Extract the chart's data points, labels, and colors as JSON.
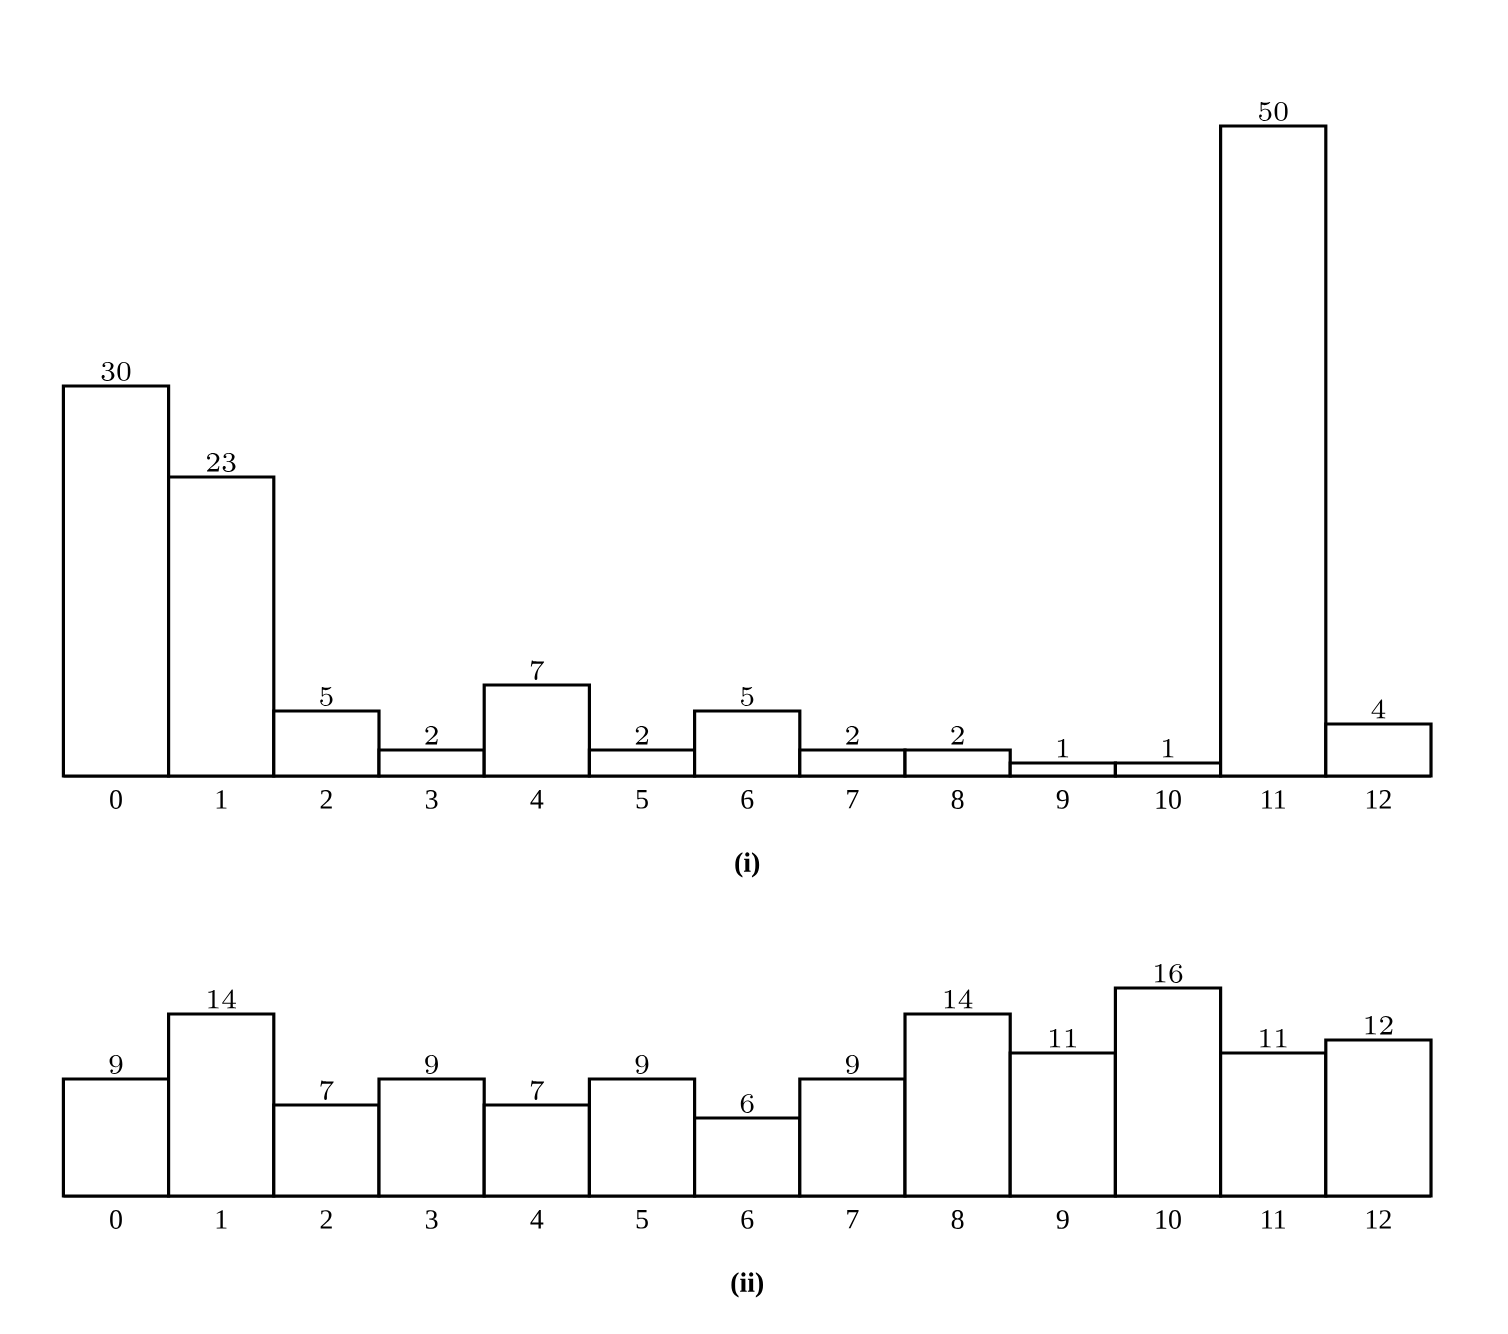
{
  "chart_data": [
    {
      "type": "bar",
      "categories": [
        "0",
        "1",
        "2",
        "3",
        "4",
        "5",
        "6",
        "7",
        "8",
        "9",
        "10",
        "11",
        "12"
      ],
      "values": [
        30,
        23,
        5,
        2,
        7,
        2,
        5,
        2,
        2,
        1,
        1,
        50,
        4
      ],
      "color": "#ffffff",
      "xlabel": "(i)",
      "data_labels": true
    },
    {
      "type": "bar",
      "categories": [
        "0",
        "1",
        "2",
        "3",
        "4",
        "5",
        "6",
        "7",
        "8",
        "9",
        "10",
        "11",
        "12"
      ],
      "values": [
        9,
        14,
        7,
        9,
        7,
        9,
        6,
        9,
        14,
        11,
        16,
        11,
        12
      ],
      "color": "#ffffff",
      "xlabel": "(ii)",
      "data_labels": true
    }
  ]
}
